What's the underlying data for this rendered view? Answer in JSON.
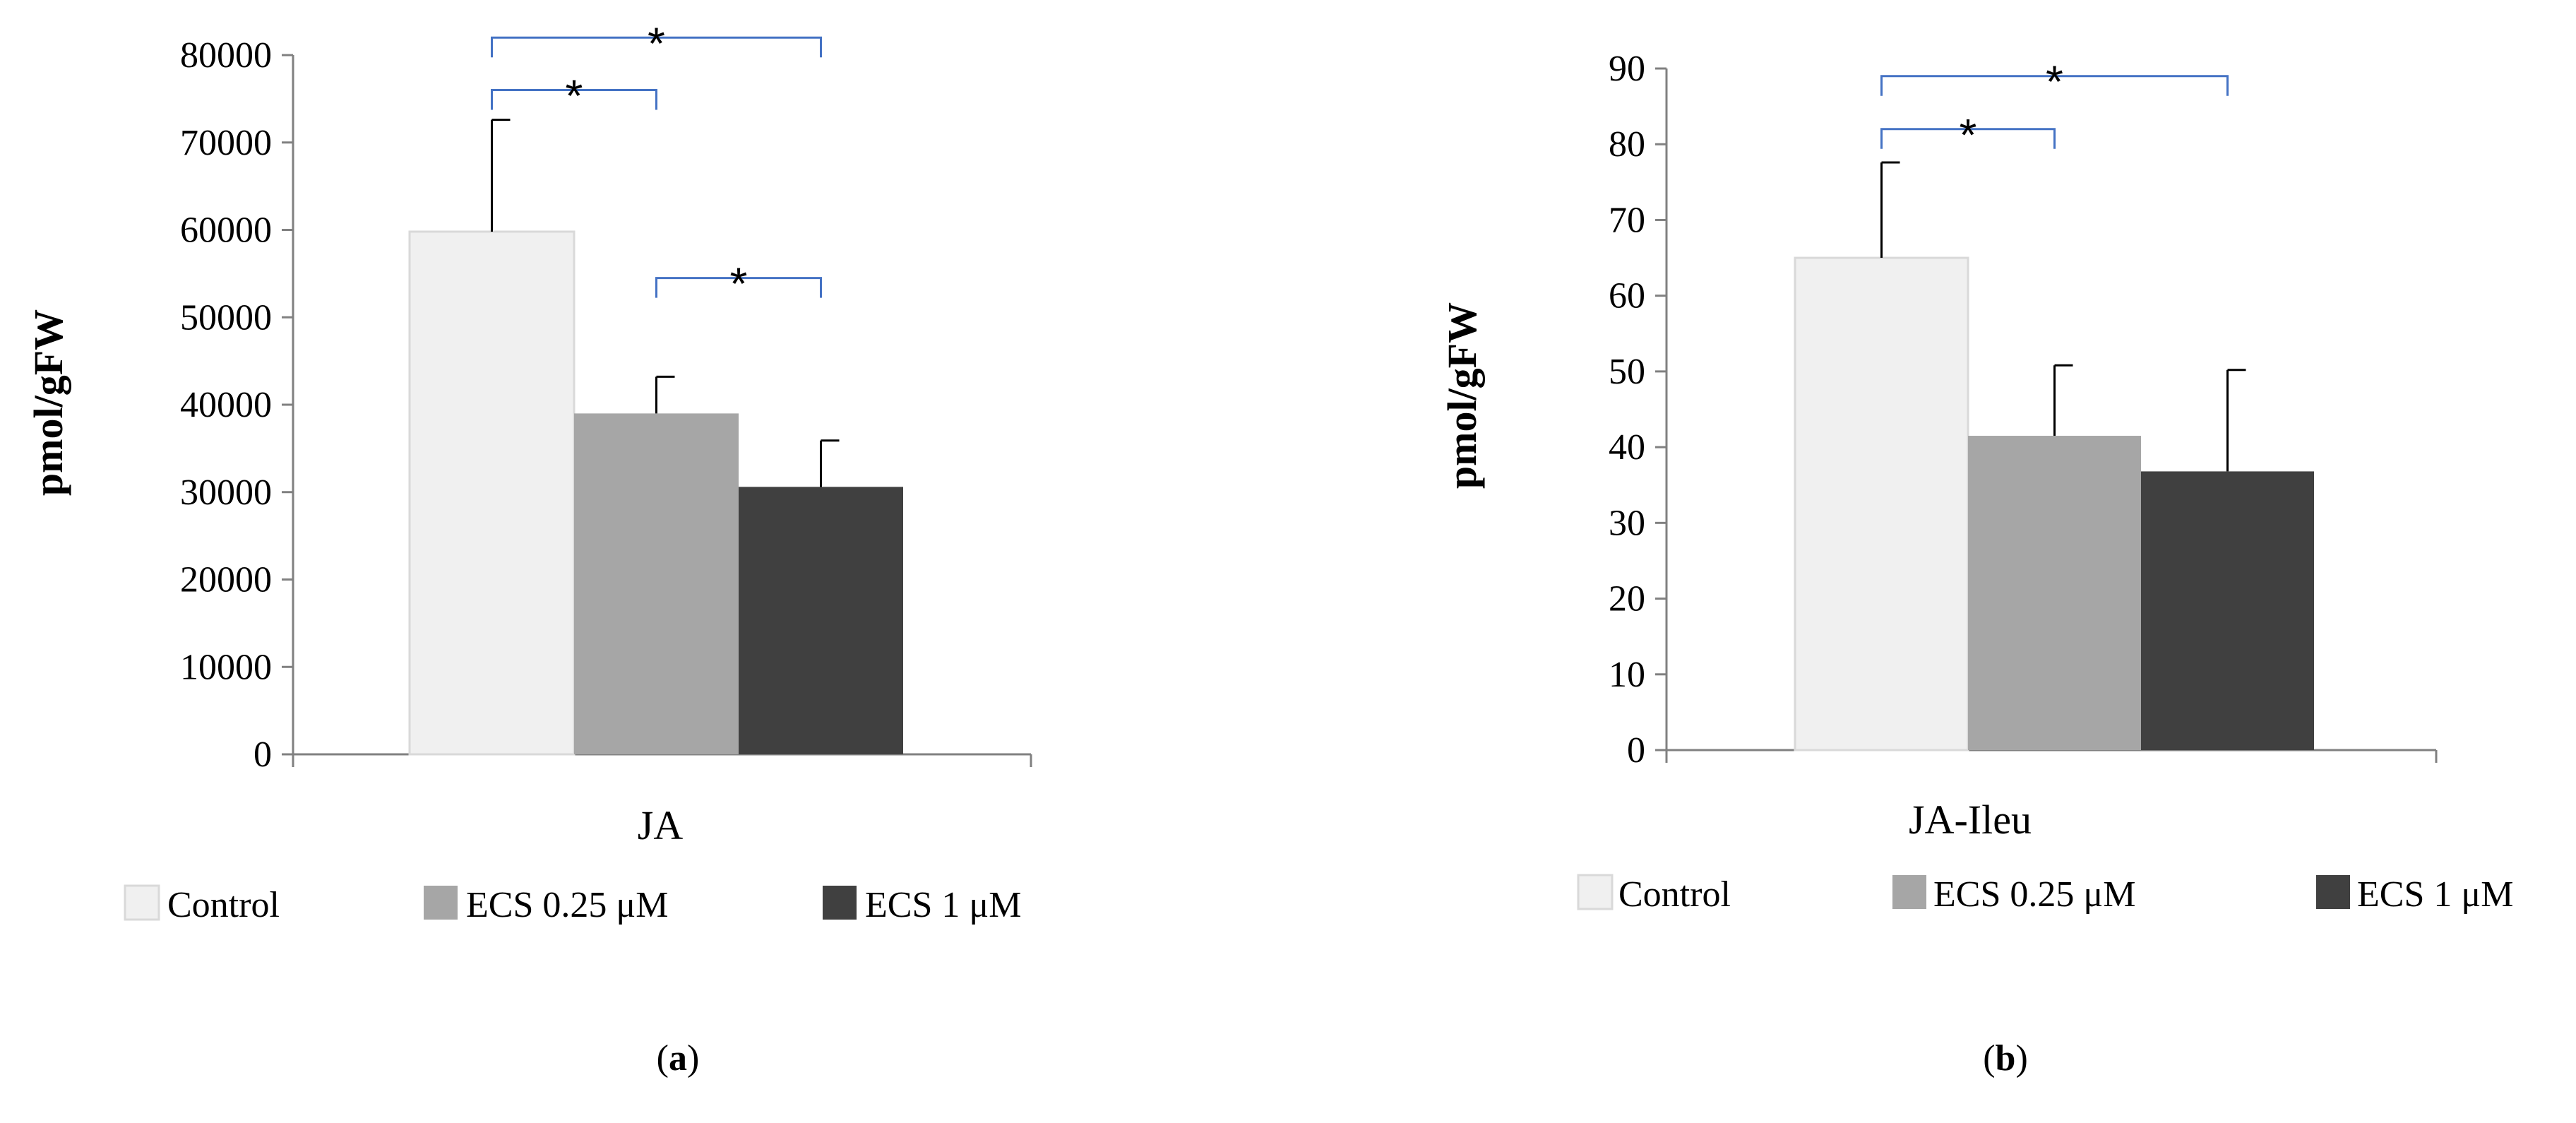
{
  "chart_data": [
    {
      "type": "bar",
      "panel": "a",
      "caption_letter": "a",
      "ylabel": "pmol/gFW",
      "categories": [
        "JA"
      ],
      "ylim": [
        0,
        80000
      ],
      "ytick_step": 10000,
      "yticks": [
        "0",
        "10000",
        "20000",
        "30000",
        "40000",
        "50000",
        "60000",
        "70000",
        "80000"
      ],
      "series": [
        {
          "name": "Control",
          "values": [
            59800
          ],
          "error": [
            12800
          ],
          "color": "#f0f0f0"
        },
        {
          "name": "ECS 0.25 μM",
          "values": [
            39000
          ],
          "error": [
            4200
          ],
          "color": "#a6a6a6"
        },
        {
          "name": "ECS 1 μM",
          "values": [
            30600
          ],
          "error": [
            5300
          ],
          "color": "#404040"
        }
      ],
      "significance": [
        {
          "from": 0,
          "to": 2,
          "label": "*",
          "y": 82000
        },
        {
          "from": 0,
          "to": 1,
          "label": "*",
          "y": 76000
        },
        {
          "from": 1,
          "to": 2,
          "label": "*",
          "y": 54500
        }
      ],
      "bracket_color": "#4472c4",
      "legend_position": "bottom"
    },
    {
      "type": "bar",
      "panel": "b",
      "caption_letter": "b",
      "ylabel": "pmol/gFW",
      "categories": [
        "JA-Ileu"
      ],
      "ylim": [
        0,
        90
      ],
      "ytick_step": 10,
      "yticks": [
        "0",
        "10",
        "20",
        "30",
        "40",
        "50",
        "60",
        "70",
        "80",
        "90"
      ],
      "series": [
        {
          "name": "Control",
          "values": [
            65
          ],
          "error": [
            12.6
          ],
          "color": "#f0f0f0"
        },
        {
          "name": "ECS 0.25 μM",
          "values": [
            41.5
          ],
          "error": [
            9.3
          ],
          "color": "#a6a6a6"
        },
        {
          "name": "ECS 1 μM",
          "values": [
            36.8
          ],
          "error": [
            13.4
          ],
          "color": "#404040"
        }
      ],
      "significance": [
        {
          "from": 0,
          "to": 2,
          "label": "*",
          "y": 89
        },
        {
          "from": 0,
          "to": 1,
          "label": "*",
          "y": 82
        }
      ],
      "bracket_color": "#4472c4",
      "legend_position": "bottom"
    }
  ]
}
